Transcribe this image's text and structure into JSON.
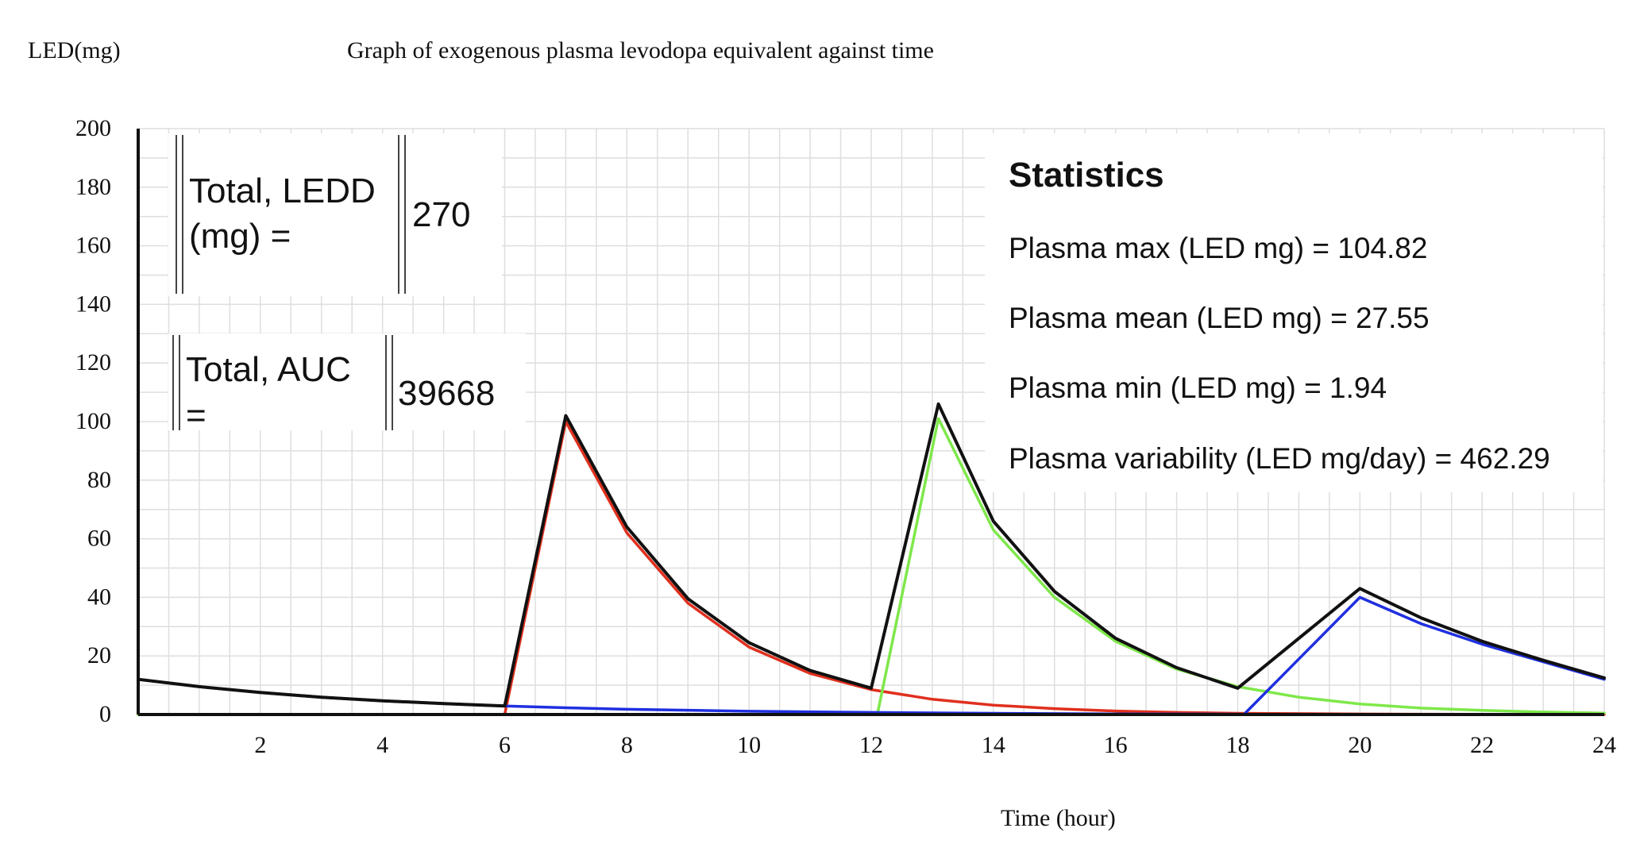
{
  "chart_data": {
    "type": "line",
    "title": "Graph of exogenous plasma levodopa equivalent against time",
    "xlabel": "Time (hour)",
    "ylabel": "LED(mg)",
    "xlim": [
      0,
      24
    ],
    "ylim": [
      0,
      200
    ],
    "x_ticks": [
      2,
      4,
      6,
      8,
      10,
      12,
      14,
      16,
      18,
      20,
      22,
      24
    ],
    "y_ticks": [
      0,
      20,
      40,
      60,
      80,
      100,
      120,
      140,
      160,
      180,
      200
    ],
    "grid": true,
    "series": [
      {
        "color": "#e0301e",
        "points": [
          [
            0,
            0
          ],
          [
            6,
            0
          ],
          [
            7,
            100
          ],
          [
            8,
            62
          ],
          [
            9,
            38
          ],
          [
            10,
            23
          ],
          [
            11,
            14
          ],
          [
            12,
            8.5
          ],
          [
            13,
            5.2
          ],
          [
            14,
            3.2
          ],
          [
            15,
            2
          ],
          [
            16,
            1.2
          ],
          [
            17,
            0.7
          ],
          [
            18,
            0.4
          ],
          [
            20,
            0.15
          ],
          [
            22,
            0.05
          ],
          [
            24,
            0
          ]
        ]
      },
      {
        "color": "#7ee84a",
        "points": [
          [
            0,
            0
          ],
          [
            12.1,
            0
          ],
          [
            13.1,
            101
          ],
          [
            14,
            63
          ],
          [
            15,
            40
          ],
          [
            16,
            25
          ],
          [
            17,
            15.5
          ],
          [
            18,
            9.5
          ],
          [
            19,
            5.9
          ],
          [
            20,
            3.6
          ],
          [
            21,
            2.2
          ],
          [
            22,
            1.4
          ],
          [
            23,
            0.85
          ],
          [
            24,
            0.5
          ]
        ]
      },
      {
        "color": "#1f2fe0",
        "points": [
          [
            0,
            12
          ],
          [
            1,
            9.5
          ],
          [
            2,
            7.5
          ],
          [
            3,
            5.9
          ],
          [
            4,
            4.7
          ],
          [
            5,
            3.7
          ],
          [
            6,
            2.9
          ],
          [
            7,
            2.3
          ],
          [
            8,
            1.8
          ],
          [
            10,
            1.1
          ],
          [
            12,
            0.7
          ],
          [
            14,
            0.4
          ],
          [
            16,
            0.2
          ],
          [
            18,
            0.1
          ],
          [
            18.1,
            0
          ],
          [
            20,
            40
          ],
          [
            21,
            31
          ],
          [
            22,
            24
          ],
          [
            23,
            18
          ],
          [
            24,
            12
          ]
        ]
      },
      {
        "color": "#111111",
        "points": [
          [
            0,
            12
          ],
          [
            1,
            9.5
          ],
          [
            2,
            7.5
          ],
          [
            3,
            5.9
          ],
          [
            4,
            4.7
          ],
          [
            5,
            3.7
          ],
          [
            6,
            2.9
          ],
          [
            7,
            102
          ],
          [
            8,
            64
          ],
          [
            9,
            39.5
          ],
          [
            10,
            24.5
          ],
          [
            11,
            15
          ],
          [
            12,
            9
          ],
          [
            13.1,
            106
          ],
          [
            14,
            66
          ],
          [
            15,
            42
          ],
          [
            16,
            26
          ],
          [
            17,
            16
          ],
          [
            18,
            9
          ],
          [
            20,
            43
          ],
          [
            21,
            33
          ],
          [
            22,
            25
          ],
          [
            23,
            18.5
          ],
          [
            24,
            12.5
          ]
        ]
      }
    ]
  },
  "info_boxes": {
    "ledd_label_line1": "Total, LEDD",
    "ledd_label_line2": "(mg) =",
    "ledd_value": "270",
    "auc_label_line1": "Total, AUC",
    "auc_label_line2": "=",
    "auc_value": "39668"
  },
  "statistics": {
    "heading": "Statistics",
    "max": "Plasma max (LED mg) = 104.82",
    "mean": "Plasma mean (LED mg) = 27.55",
    "min": "Plasma min (LED mg) = 1.94",
    "variability": "Plasma variability (LED mg/day) = 462.29"
  }
}
